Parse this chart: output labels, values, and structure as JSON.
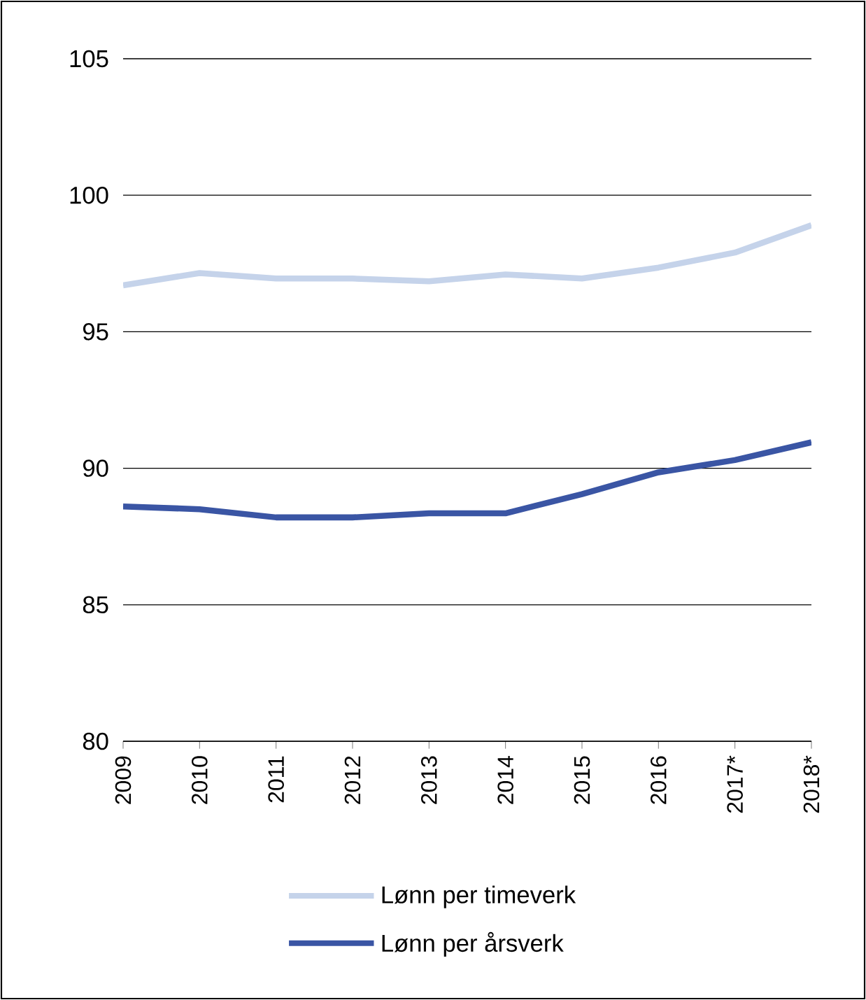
{
  "chart_data": {
    "type": "line",
    "categories": [
      "2009",
      "2010",
      "2011",
      "2012",
      "2013",
      "2014",
      "2015",
      "2016",
      "2017*",
      "2018*"
    ],
    "series": [
      {
        "name": "Lønn per timeverk",
        "color": "#c5d3ea",
        "values": [
          96.7,
          97.15,
          96.95,
          96.95,
          96.85,
          97.1,
          96.95,
          97.35,
          97.9,
          98.9
        ]
      },
      {
        "name": "Lønn per årsverk",
        "color": "#3a55a4",
        "values": [
          88.6,
          88.5,
          88.2,
          88.2,
          88.35,
          88.35,
          89.05,
          89.85,
          90.3,
          90.95
        ]
      }
    ],
    "ylim": [
      80,
      105
    ],
    "yticks": [
      80,
      85,
      90,
      95,
      100,
      105
    ],
    "grid": "y",
    "legend": "bottom",
    "marker": "none",
    "line_style": "solid"
  }
}
